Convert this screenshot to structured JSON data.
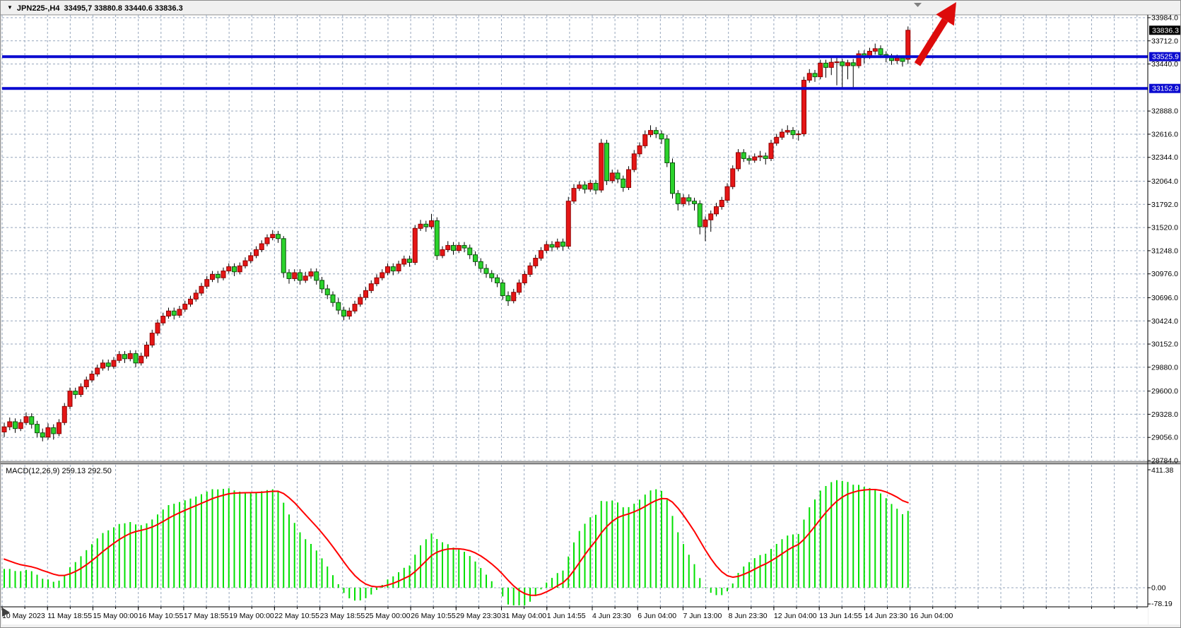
{
  "titlebar": {
    "symbol_period": "JPN225-,H4",
    "ohlc_text": "33495,7 33880.8 33440.6 33836.3"
  },
  "indicator": {
    "label": "MACD(12,26,9) 259.13 292.50"
  },
  "colors": {
    "window_bg": "#f0f0f0",
    "panel_bg": "#ffffff",
    "grid": "#96a6bc",
    "bull_fill": "#e51616",
    "bull_border": "#8f0000",
    "bear_fill": "#2bd32b",
    "bear_border": "#0a520a",
    "wick": "#000000",
    "hline_blue": "#0b0bd0",
    "macd_hist_green": "#00e000",
    "macd_signal_red": "#ff0000",
    "badge_current_bg": "#000000",
    "badge_line_bg": "#0b0bd0",
    "badge_text": "#ffffff",
    "axis_text": "#000000",
    "arrow_red": "#dd0b0b",
    "shift_marker_gray": "#808080"
  },
  "price_axis": {
    "tick_labels": [
      "33984.0",
      "33712.0",
      "33440.0",
      "32888.0",
      "32616.0",
      "32344.0",
      "32064.0",
      "31792.0",
      "31520.0",
      "31248.0",
      "30976.0",
      "30696.0",
      "30424.0",
      "30152.0",
      "29880.0",
      "29600.0",
      "29328.0",
      "29056.0",
      "28784.0"
    ],
    "tick_values": [
      33984,
      33712,
      33440,
      32888,
      32616,
      32344,
      32064,
      31792,
      31520,
      31248,
      30976,
      30696,
      30424,
      30152,
      29880,
      29600,
      29328,
      29056,
      28784
    ],
    "badges": [
      {
        "text": "33836.3",
        "value": 33836.3,
        "type": "current"
      },
      {
        "text": "33525.9",
        "value": 33525.9,
        "type": "hline"
      },
      {
        "text": "33152.9",
        "value": 33152.9,
        "type": "hline"
      }
    ]
  },
  "time_axis": {
    "labels": [
      "10 May 2023",
      "11 May 18:55",
      "15 May 00:00",
      "16 May 10:55",
      "17 May 18:55",
      "19 May 00:00",
      "22 May 10:55",
      "23 May 18:55",
      "25 May 00:00",
      "26 May 10:55",
      "29 May 23:30",
      "31 May 04:00",
      "1 Jun 14:55",
      "4 Jun 23:30",
      "6 Jun 04:00",
      "7 Jun 13:00",
      "8 Jun 23:30",
      "12 Jun 04:00",
      "13 Jun 14:55",
      "14 Jun 23:30",
      "16 Jun 04:00"
    ]
  },
  "macd_axis": {
    "tick_labels": [
      "411.38",
      "0.00",
      "-78.19"
    ],
    "tick_values": [
      411.38,
      0,
      -78.19
    ]
  },
  "chart_data": {
    "type": "candlestick",
    "symbol": "JPN225-",
    "timeframe": "H4",
    "title": "JPN225-,H4",
    "ylim": [
      28784,
      33984
    ],
    "current_bar": {
      "open": 33495.7,
      "high": 33880.8,
      "low": 33440.6,
      "close": 33836.3
    },
    "hlines": [
      33525.9,
      33152.9
    ],
    "up_color_is_red": true,
    "candles": [
      [
        29120,
        29230,
        29060,
        29180
      ],
      [
        29180,
        29290,
        29140,
        29240
      ],
      [
        29240,
        29280,
        29110,
        29160
      ],
      [
        29160,
        29270,
        29130,
        29230
      ],
      [
        29230,
        29350,
        29200,
        29300
      ],
      [
        29300,
        29340,
        29160,
        29210
      ],
      [
        29210,
        29250,
        29060,
        29110
      ],
      [
        29110,
        29160,
        29010,
        29060
      ],
      [
        29060,
        29220,
        29030,
        29170
      ],
      [
        29170,
        29210,
        29030,
        29100
      ],
      [
        29100,
        29270,
        29070,
        29230
      ],
      [
        29230,
        29460,
        29200,
        29420
      ],
      [
        29420,
        29640,
        29390,
        29600
      ],
      [
        29600,
        29640,
        29510,
        29560
      ],
      [
        29560,
        29690,
        29530,
        29650
      ],
      [
        29650,
        29770,
        29620,
        29730
      ],
      [
        29730,
        29840,
        29700,
        29800
      ],
      [
        29800,
        29910,
        29770,
        29870
      ],
      [
        29870,
        29970,
        29840,
        29930
      ],
      [
        29930,
        29970,
        29840,
        29890
      ],
      [
        29890,
        30000,
        29860,
        29960
      ],
      [
        29960,
        30070,
        29930,
        30030
      ],
      [
        30030,
        30070,
        29930,
        29980
      ],
      [
        29980,
        30080,
        29950,
        30040
      ],
      [
        30040,
        30080,
        29880,
        29930
      ],
      [
        29930,
        30050,
        29900,
        30010
      ],
      [
        30010,
        30180,
        29980,
        30140
      ],
      [
        30140,
        30320,
        30110,
        30280
      ],
      [
        30280,
        30440,
        30250,
        30400
      ],
      [
        30400,
        30520,
        30370,
        30480
      ],
      [
        30480,
        30580,
        30450,
        30540
      ],
      [
        30540,
        30580,
        30440,
        30490
      ],
      [
        30490,
        30600,
        30460,
        30560
      ],
      [
        30560,
        30660,
        30530,
        30620
      ],
      [
        30620,
        30720,
        30590,
        30680
      ],
      [
        30680,
        30790,
        30650,
        30750
      ],
      [
        30750,
        30870,
        30720,
        30830
      ],
      [
        30830,
        30950,
        30800,
        30910
      ],
      [
        30910,
        31010,
        30880,
        30970
      ],
      [
        30970,
        31010,
        30870,
        30930
      ],
      [
        30930,
        31050,
        30900,
        31010
      ],
      [
        31010,
        31100,
        30980,
        31060
      ],
      [
        31060,
        31100,
        30950,
        31000
      ],
      [
        31000,
        31110,
        30970,
        31070
      ],
      [
        31070,
        31170,
        31040,
        31130
      ],
      [
        31130,
        31230,
        31100,
        31190
      ],
      [
        31190,
        31300,
        31160,
        31260
      ],
      [
        31260,
        31370,
        31230,
        31330
      ],
      [
        31330,
        31440,
        31300,
        31400
      ],
      [
        31400,
        31490,
        31370,
        31440
      ],
      [
        31440,
        31480,
        31340,
        31390
      ],
      [
        31390,
        31420,
        30930,
        30990
      ],
      [
        30990,
        31030,
        30860,
        30920
      ],
      [
        30920,
        31030,
        30890,
        30990
      ],
      [
        30990,
        31030,
        30850,
        30900
      ],
      [
        30900,
        31000,
        30870,
        30950
      ],
      [
        30950,
        31040,
        30920,
        31000
      ],
      [
        31000,
        31040,
        30850,
        30900
      ],
      [
        30900,
        30940,
        30750,
        30800
      ],
      [
        30800,
        30850,
        30680,
        30730
      ],
      [
        30730,
        30770,
        30590,
        30640
      ],
      [
        30640,
        30690,
        30500,
        30550
      ],
      [
        30550,
        30590,
        30430,
        30480
      ],
      [
        30480,
        30580,
        30440,
        30540
      ],
      [
        30540,
        30660,
        30510,
        30620
      ],
      [
        30620,
        30740,
        30590,
        30700
      ],
      [
        30700,
        30820,
        30670,
        30780
      ],
      [
        30780,
        30900,
        30750,
        30860
      ],
      [
        30860,
        30970,
        30830,
        30930
      ],
      [
        30930,
        31030,
        30900,
        30990
      ],
      [
        30990,
        31100,
        30960,
        31060
      ],
      [
        31060,
        31100,
        30960,
        31010
      ],
      [
        31010,
        31130,
        30980,
        31090
      ],
      [
        31090,
        31190,
        31060,
        31150
      ],
      [
        31150,
        31190,
        31060,
        31110
      ],
      [
        31110,
        31550,
        31080,
        31510
      ],
      [
        31510,
        31610,
        31480,
        31560
      ],
      [
        31560,
        31600,
        31470,
        31530
      ],
      [
        31530,
        31680,
        31500,
        31600
      ],
      [
        31600,
        31640,
        31140,
        31190
      ],
      [
        31190,
        31300,
        31160,
        31260
      ],
      [
        31260,
        31360,
        31230,
        31310
      ],
      [
        31310,
        31350,
        31200,
        31250
      ],
      [
        31250,
        31350,
        31220,
        31310
      ],
      [
        31310,
        31350,
        31230,
        31280
      ],
      [
        31280,
        31320,
        31150,
        31200
      ],
      [
        31200,
        31240,
        31070,
        31120
      ],
      [
        31120,
        31160,
        30990,
        31040
      ],
      [
        31040,
        31090,
        30930,
        30980
      ],
      [
        30980,
        31020,
        30880,
        30930
      ],
      [
        30930,
        30970,
        30820,
        30870
      ],
      [
        30870,
        30910,
        30670,
        30720
      ],
      [
        30720,
        30770,
        30600,
        30660
      ],
      [
        30660,
        30800,
        30630,
        30760
      ],
      [
        30760,
        30910,
        30730,
        30870
      ],
      [
        30870,
        31010,
        30840,
        30970
      ],
      [
        30970,
        31110,
        30940,
        31070
      ],
      [
        31070,
        31200,
        31040,
        31160
      ],
      [
        31160,
        31290,
        31130,
        31250
      ],
      [
        31250,
        31360,
        31220,
        31320
      ],
      [
        31320,
        31360,
        31240,
        31290
      ],
      [
        31290,
        31390,
        31260,
        31350
      ],
      [
        31350,
        31390,
        31250,
        31300
      ],
      [
        31300,
        31880,
        31270,
        31830
      ],
      [
        31830,
        32030,
        31800,
        31980
      ],
      [
        31980,
        32060,
        31950,
        32020
      ],
      [
        32020,
        32060,
        31920,
        31970
      ],
      [
        31970,
        32080,
        31940,
        32040
      ],
      [
        32040,
        32080,
        31910,
        31960
      ],
      [
        31960,
        32560,
        31930,
        32510
      ],
      [
        32510,
        32550,
        32020,
        32070
      ],
      [
        32070,
        32200,
        32040,
        32160
      ],
      [
        32160,
        32200,
        32040,
        32090
      ],
      [
        32090,
        32130,
        31940,
        31990
      ],
      [
        31990,
        32240,
        31960,
        32200
      ],
      [
        32200,
        32430,
        32170,
        32385
      ],
      [
        32385,
        32520,
        32350,
        32480
      ],
      [
        32480,
        32660,
        32450,
        32610
      ],
      [
        32610,
        32720,
        32580,
        32660
      ],
      [
        32660,
        32700,
        32570,
        32620
      ],
      [
        32620,
        32660,
        32500,
        32560
      ],
      [
        32560,
        32610,
        32230,
        32280
      ],
      [
        32280,
        32330,
        31860,
        31920
      ],
      [
        31920,
        31960,
        31720,
        31800
      ],
      [
        31800,
        31910,
        31770,
        31870
      ],
      [
        31870,
        31910,
        31780,
        31830
      ],
      [
        31830,
        31870,
        31720,
        31800
      ],
      [
        31800,
        31840,
        31440,
        31530
      ],
      [
        31530,
        31650,
        31360,
        31610
      ],
      [
        31610,
        31720,
        31470,
        31680
      ],
      [
        31680,
        31810,
        31650,
        31765
      ],
      [
        31765,
        31880,
        31730,
        31840
      ],
      [
        31840,
        32040,
        31810,
        32000
      ],
      [
        32000,
        32250,
        31970,
        32210
      ],
      [
        32210,
        32440,
        32180,
        32400
      ],
      [
        32400,
        32440,
        32290,
        32330
      ],
      [
        32330,
        32370,
        32260,
        32310
      ],
      [
        32310,
        32390,
        32280,
        32350
      ],
      [
        32350,
        32420,
        32300,
        32360
      ],
      [
        32360,
        32400,
        32260,
        32330
      ],
      [
        32330,
        32550,
        32300,
        32510
      ],
      [
        32510,
        32620,
        32480,
        32580
      ],
      [
        32580,
        32680,
        32550,
        32640
      ],
      [
        32640,
        32720,
        32610,
        32660
      ],
      [
        32660,
        32700,
        32560,
        32610
      ],
      [
        32610,
        32660,
        32540,
        32620
      ],
      [
        32620,
        33290,
        32590,
        33250
      ],
      [
        33250,
        33380,
        33220,
        33330
      ],
      [
        33330,
        33370,
        33230,
        33290
      ],
      [
        33290,
        33490,
        33260,
        33450
      ],
      [
        33450,
        33490,
        33280,
        33400
      ],
      [
        33400,
        33510,
        33310,
        33460
      ],
      [
        33460,
        33520,
        33190,
        33465
      ],
      [
        33465,
        33500,
        33150,
        33420
      ],
      [
        33420,
        33490,
        33260,
        33455
      ],
      [
        33455,
        33500,
        33160,
        33420
      ],
      [
        33420,
        33600,
        33390,
        33560
      ],
      [
        33560,
        33600,
        33450,
        33530
      ],
      [
        33530,
        33630,
        33500,
        33590
      ],
      [
        33590,
        33680,
        33550,
        33620
      ],
      [
        33620,
        33660,
        33510,
        33550
      ],
      [
        33550,
        33590,
        33460,
        33520
      ],
      [
        33520,
        33560,
        33430,
        33480
      ],
      [
        33480,
        33550,
        33440,
        33510
      ],
      [
        33510,
        33540,
        33410,
        33470
      ],
      [
        33495.7,
        33880.8,
        33440.6,
        33836.3
      ]
    ],
    "macd": {
      "type": "macd",
      "params": [
        12,
        26,
        9
      ],
      "main_last": 259.13,
      "signal_last": 292.5,
      "ylim": [
        -78.19,
        411.38
      ],
      "left_edge_hist": 70,
      "left_edge_signal": 107
    }
  }
}
